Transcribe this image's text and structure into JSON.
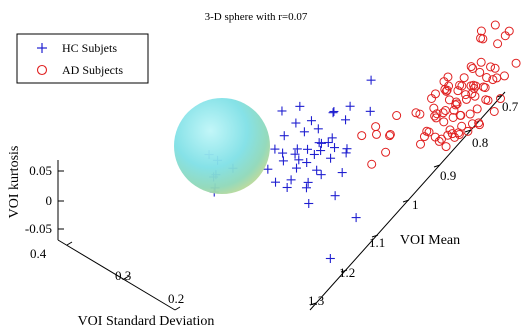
{
  "chart_data": {
    "type": "scatter",
    "projection": "3d",
    "title": "3-D sphere with r=0.07",
    "xlabel": "VOI Mean",
    "ylabel": "VOI Standard Deviation",
    "zlabel": "VOI kurtosis",
    "x_ticks": [
      "0.7",
      "0.8",
      "0.9",
      "1",
      "1.1",
      "1.2",
      "1.3"
    ],
    "y_ticks": [
      "0.4",
      "0.3",
      "0.2"
    ],
    "z_ticks": [
      "0.05",
      "0",
      "-0.05"
    ],
    "x_range": [
      0.65,
      1.35
    ],
    "y_range": [
      0.15,
      0.45
    ],
    "z_range": [
      -0.07,
      0.12
    ],
    "grid": false,
    "legend_position": "top-left",
    "sphere": {
      "radius": 0.07,
      "color": "#7fe0e6"
    },
    "series": [
      {
        "name": "HC Subjets",
        "marker": "plus",
        "color": "#1f1fd0",
        "points": [
          [
            1.02,
            0.33,
            0.085
          ],
          [
            1.05,
            0.34,
            0.07
          ],
          [
            1.06,
            0.36,
            0.06
          ],
          [
            1.05,
            0.31,
            0.055
          ],
          [
            1.08,
            0.33,
            0.05
          ],
          [
            1.1,
            0.35,
            0.06
          ],
          [
            1.03,
            0.3,
            0.04
          ],
          [
            1.07,
            0.37,
            0.075
          ],
          [
            1.12,
            0.34,
            0.045
          ],
          [
            1.04,
            0.38,
            0.08
          ],
          [
            1.09,
            0.32,
            0.035
          ],
          [
            1.11,
            0.3,
            0.05
          ],
          [
            1.06,
            0.29,
            0.03
          ],
          [
            1.13,
            0.36,
            0.065
          ],
          [
            1.08,
            0.39,
            0.09
          ],
          [
            1.0,
            0.34,
            0.07
          ],
          [
            1.14,
            0.31,
            0.04
          ],
          [
            1.02,
            0.37,
            0.05
          ],
          [
            1.1,
            0.28,
            0.02
          ],
          [
            1.15,
            0.34,
            0.03
          ],
          [
            1.12,
            0.38,
            0.055
          ],
          [
            1.07,
            0.35,
            0.02
          ],
          [
            1.04,
            0.32,
            0.06
          ],
          [
            1.16,
            0.37,
            0.05
          ],
          [
            1.09,
            0.36,
            0.04
          ],
          [
            1.01,
            0.31,
            0.03
          ],
          [
            1.13,
            0.33,
            0.07
          ],
          [
            1.06,
            0.33,
            0.045
          ],
          [
            1.11,
            0.37,
            0.035
          ],
          [
            1.05,
            0.36,
            0.025
          ],
          [
            1.08,
            0.3,
            0.06
          ],
          [
            1.17,
            0.35,
            0.045
          ],
          [
            0.98,
            0.33,
            0.05
          ],
          [
            1.03,
            0.35,
            0.03
          ],
          [
            1.1,
            0.33,
            0.015
          ],
          [
            1.15,
            0.3,
            0.025
          ],
          [
            1.07,
            0.31,
            0.075
          ],
          [
            1.12,
            0.35,
            0.02
          ],
          [
            1.04,
            0.34,
            0.04
          ],
          [
            1.09,
            0.38,
            0.06
          ],
          [
            1.22,
            0.4,
            0.07
          ],
          [
            1.24,
            0.42,
            0.06
          ],
          [
            1.2,
            0.44,
            0.05
          ],
          [
            1.26,
            0.41,
            0.055
          ],
          [
            1.23,
            0.43,
            0.045
          ],
          [
            1.28,
            0.4,
            0.065
          ],
          [
            1.21,
            0.45,
            0.06
          ],
          [
            1.05,
            0.27,
            -0.04
          ],
          [
            1.15,
            0.26,
            -0.045
          ],
          [
            0.95,
            0.3,
            0.115
          ],
          [
            1.0,
            0.31,
            0.095
          ],
          [
            0.97,
            0.29,
            0.08
          ]
        ]
      },
      {
        "name": "AD Subjects",
        "marker": "circle",
        "color": "#e02020",
        "points": [
          [
            0.83,
            0.21,
            0.055
          ],
          [
            0.8,
            0.2,
            0.06
          ],
          [
            0.85,
            0.22,
            0.05
          ],
          [
            0.78,
            0.19,
            0.065
          ],
          [
            0.82,
            0.23,
            0.045
          ],
          [
            0.87,
            0.2,
            0.04
          ],
          [
            0.79,
            0.22,
            0.07
          ],
          [
            0.84,
            0.18,
            0.06
          ],
          [
            0.81,
            0.24,
            0.05
          ],
          [
            0.86,
            0.19,
            0.035
          ],
          [
            0.77,
            0.21,
            0.05
          ],
          [
            0.88,
            0.22,
            0.055
          ],
          [
            0.83,
            0.17,
            0.045
          ],
          [
            0.8,
            0.25,
            0.04
          ],
          [
            0.85,
            0.2,
            0.075
          ],
          [
            0.75,
            0.19,
            0.06
          ],
          [
            0.89,
            0.18,
            0.05
          ],
          [
            0.82,
            0.21,
            0.03
          ],
          [
            0.78,
            0.23,
            0.045
          ],
          [
            0.86,
            0.24,
            0.065
          ],
          [
            0.74,
            0.2,
            0.07
          ],
          [
            0.9,
            0.21,
            0.04
          ],
          [
            0.81,
            0.19,
            0.08
          ],
          [
            0.84,
            0.23,
            0.035
          ],
          [
            0.79,
            0.18,
            0.055
          ],
          [
            0.87,
            0.23,
            0.06
          ],
          [
            0.76,
            0.22,
            0.04
          ],
          [
            0.83,
            0.25,
            0.05
          ],
          [
            0.8,
            0.17,
            0.065
          ],
          [
            0.88,
            0.19,
            0.045
          ],
          [
            0.73,
            0.18,
            0.06
          ],
          [
            0.85,
            0.17,
            0.055
          ],
          [
            0.82,
            0.19,
            0.09
          ],
          [
            0.78,
            0.21,
            0.085
          ],
          [
            0.9,
            0.23,
            0.03
          ],
          [
            0.74,
            0.22,
            0.05
          ],
          [
            0.86,
            0.21,
            0.02
          ],
          [
            0.8,
            0.23,
            0.025
          ],
          [
            0.84,
            0.2,
            0.015
          ],
          [
            0.77,
            0.24,
            0.035
          ],
          [
            0.89,
            0.2,
            0.065
          ],
          [
            0.81,
            0.22,
            0.06
          ],
          [
            0.76,
            0.17,
            0.045
          ],
          [
            0.87,
            0.18,
            0.075
          ],
          [
            0.83,
            0.19,
            0.02
          ],
          [
            0.79,
            0.25,
            0.055
          ],
          [
            0.85,
            0.24,
            0.03
          ],
          [
            0.91,
            0.22,
            0.05
          ],
          [
            0.72,
            0.2,
            0.04
          ],
          [
            0.82,
            0.24,
            0.07
          ],
          [
            0.88,
            0.25,
            0.045
          ],
          [
            0.78,
            0.17,
            0.035
          ],
          [
            0.84,
            0.22,
            0.085
          ],
          [
            0.8,
            0.21,
            0.045
          ],
          [
            0.86,
            0.2,
            0.055
          ],
          [
            0.9,
            0.19,
            0.035
          ],
          [
            0.75,
            0.23,
            0.06
          ],
          [
            0.81,
            0.18,
            0.025
          ],
          [
            0.87,
            0.22,
            0.01
          ],
          [
            0.83,
            0.23,
            0.065
          ],
          [
            0.77,
            0.19,
            0.075
          ],
          [
            0.85,
            0.19,
            0.04
          ],
          [
            0.79,
            0.2,
            0.05
          ],
          [
            0.92,
            0.21,
            0.06
          ],
          [
            0.74,
            0.21,
            0.03
          ],
          [
            0.82,
            0.2,
            0.07
          ],
          [
            0.88,
            0.21,
            0.025
          ],
          [
            0.8,
            0.19,
            0.04
          ],
          [
            0.86,
            0.23,
            0.045
          ],
          [
            0.84,
            0.21,
            0.05
          ],
          [
            0.91,
            0.24,
            0.07
          ],
          [
            0.93,
            0.22,
            0.04
          ],
          [
            0.96,
            0.26,
            0.05
          ],
          [
            0.94,
            0.27,
            0.035
          ],
          [
            0.97,
            0.28,
            0.06
          ],
          [
            0.99,
            0.25,
            0.045
          ],
          [
            0.95,
            0.29,
            0.03
          ],
          [
            1.0,
            0.27,
            0.02
          ],
          [
            0.92,
            0.27,
            0.055
          ],
          [
            0.98,
            0.3,
            0.04
          ],
          [
            0.7,
            0.21,
            0.08
          ],
          [
            0.71,
            0.19,
            0.11
          ],
          [
            0.69,
            0.22,
            0.1
          ],
          [
            0.72,
            0.23,
            0.09
          ],
          [
            0.68,
            0.2,
            0.095
          ],
          [
            0.73,
            0.22,
            0.1
          ],
          [
            0.7,
            0.24,
            0.085
          ],
          [
            0.71,
            0.17,
            0.075
          ],
          [
            0.76,
            0.18,
            0.09
          ],
          [
            0.77,
            0.2,
            0.095
          ]
        ]
      }
    ]
  }
}
